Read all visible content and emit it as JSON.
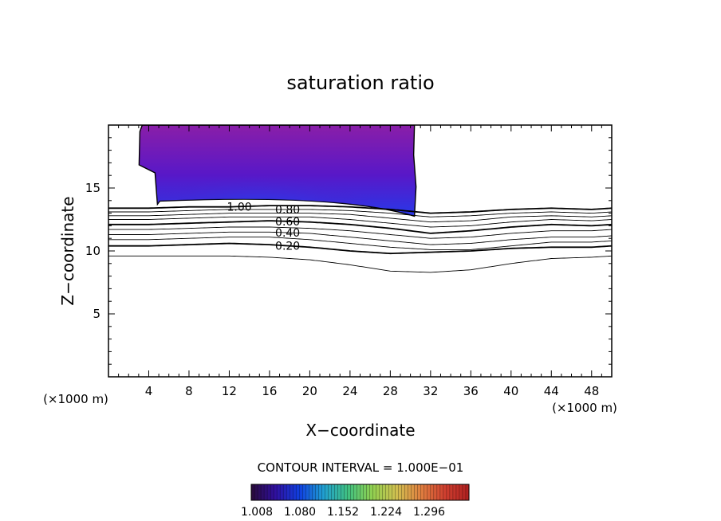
{
  "chart_data": {
    "type": "contour",
    "title": "saturation ratio",
    "xlabel": "X−coordinate",
    "ylabel": "Z−coordinate",
    "x_unit": "(×1000 m)",
    "y_unit": "(×1000 m)",
    "xlim": [
      0,
      50
    ],
    "ylim": [
      0,
      20
    ],
    "x_ticks": [
      "4",
      "8",
      "12",
      "16",
      "20",
      "24",
      "28",
      "32",
      "36",
      "40",
      "44",
      "48"
    ],
    "y_ticks": [
      "5",
      "10",
      "15"
    ],
    "contour_interval_text": "CONTOUR INTERVAL = 1.000E−01",
    "contour_labels": [
      "1.00",
      "0.80",
      "0.60",
      "0.40",
      "0.20"
    ],
    "colorbar": {
      "ticks": [
        "1.008",
        "1.080",
        "1.152",
        "1.224",
        "1.296"
      ],
      "colors": [
        "#2a0a3a",
        "#3010a0",
        "#1040e0",
        "#20a0d0",
        "#40c080",
        "#90d050",
        "#d0c050",
        "#e08040",
        "#d04030",
        "#b02020"
      ]
    },
    "supersaturated_region": {
      "x_range": [
        3.2,
        30.4
      ],
      "z_range": [
        13.2,
        20
      ],
      "colors": [
        "#8a1ea8",
        "#5818c8",
        "#2838e8"
      ]
    },
    "contours": [
      {
        "level": 1.0,
        "bold": true,
        "x": [
          0,
          4,
          8,
          12,
          16,
          20,
          24,
          28,
          32,
          36,
          40,
          44,
          48,
          50
        ],
        "z": [
          13.4,
          13.4,
          13.5,
          13.5,
          13.6,
          13.6,
          13.5,
          13.3,
          13.0,
          13.1,
          13.3,
          13.4,
          13.3,
          13.4
        ]
      },
      {
        "level": 0.9,
        "bold": false,
        "x": [
          0,
          4,
          8,
          12,
          16,
          20,
          24,
          28,
          32,
          36,
          40,
          44,
          48,
          50
        ],
        "z": [
          13.1,
          13.1,
          13.2,
          13.3,
          13.3,
          13.3,
          13.2,
          13.0,
          12.7,
          12.8,
          13.0,
          13.1,
          13.0,
          13.1
        ]
      },
      {
        "level": 0.8,
        "bold": false,
        "x": [
          0,
          4,
          8,
          12,
          16,
          20,
          24,
          28,
          32,
          36,
          40,
          44,
          48,
          50
        ],
        "z": [
          12.8,
          12.8,
          12.9,
          13.0,
          13.0,
          13.0,
          12.9,
          12.6,
          12.3,
          12.4,
          12.7,
          12.8,
          12.7,
          12.8
        ]
      },
      {
        "level": 0.7,
        "bold": false,
        "x": [
          0,
          4,
          8,
          12,
          16,
          20,
          24,
          28,
          32,
          36,
          40,
          44,
          48,
          50
        ],
        "z": [
          12.5,
          12.5,
          12.6,
          12.7,
          12.7,
          12.7,
          12.5,
          12.2,
          11.9,
          12.0,
          12.3,
          12.5,
          12.4,
          12.5
        ]
      },
      {
        "level": 0.6,
        "bold": true,
        "x": [
          0,
          4,
          8,
          12,
          16,
          20,
          24,
          28,
          32,
          36,
          40,
          44,
          48,
          50
        ],
        "z": [
          12.1,
          12.1,
          12.2,
          12.3,
          12.4,
          12.3,
          12.1,
          11.8,
          11.4,
          11.6,
          11.9,
          12.1,
          12.0,
          12.1
        ]
      },
      {
        "level": 0.5,
        "bold": false,
        "x": [
          0,
          4,
          8,
          12,
          16,
          20,
          24,
          28,
          32,
          36,
          40,
          44,
          48,
          50
        ],
        "z": [
          11.7,
          11.7,
          11.8,
          11.9,
          11.9,
          11.8,
          11.6,
          11.3,
          11.0,
          11.1,
          11.4,
          11.6,
          11.6,
          11.7
        ]
      },
      {
        "level": 0.4,
        "bold": false,
        "x": [
          0,
          4,
          8,
          12,
          16,
          20,
          24,
          28,
          32,
          36,
          40,
          44,
          48,
          50
        ],
        "z": [
          11.3,
          11.3,
          11.4,
          11.5,
          11.5,
          11.4,
          11.1,
          10.8,
          10.5,
          10.6,
          10.9,
          11.1,
          11.1,
          11.2
        ]
      },
      {
        "level": 0.3,
        "bold": false,
        "x": [
          0,
          4,
          8,
          12,
          16,
          20,
          24,
          28,
          32,
          36,
          40,
          44,
          48,
          50
        ],
        "z": [
          10.9,
          10.9,
          11.0,
          11.1,
          11.1,
          10.9,
          10.6,
          10.3,
          10.1,
          10.1,
          10.4,
          10.7,
          10.7,
          10.8
        ]
      },
      {
        "level": 0.2,
        "bold": true,
        "x": [
          0,
          4,
          8,
          12,
          16,
          20,
          24,
          28,
          32,
          36,
          40,
          44,
          48,
          50
        ],
        "z": [
          10.4,
          10.4,
          10.5,
          10.6,
          10.5,
          10.3,
          10.0,
          9.8,
          9.9,
          10.0,
          10.2,
          10.3,
          10.3,
          10.4
        ]
      },
      {
        "level": 0.1,
        "bold": false,
        "x": [
          0,
          4,
          8,
          12,
          16,
          20,
          24,
          28,
          32,
          36,
          40,
          44,
          48,
          50
        ],
        "z": [
          9.6,
          9.6,
          9.6,
          9.6,
          9.5,
          9.3,
          8.9,
          8.4,
          8.3,
          8.5,
          9.0,
          9.4,
          9.5,
          9.6
        ]
      }
    ]
  }
}
